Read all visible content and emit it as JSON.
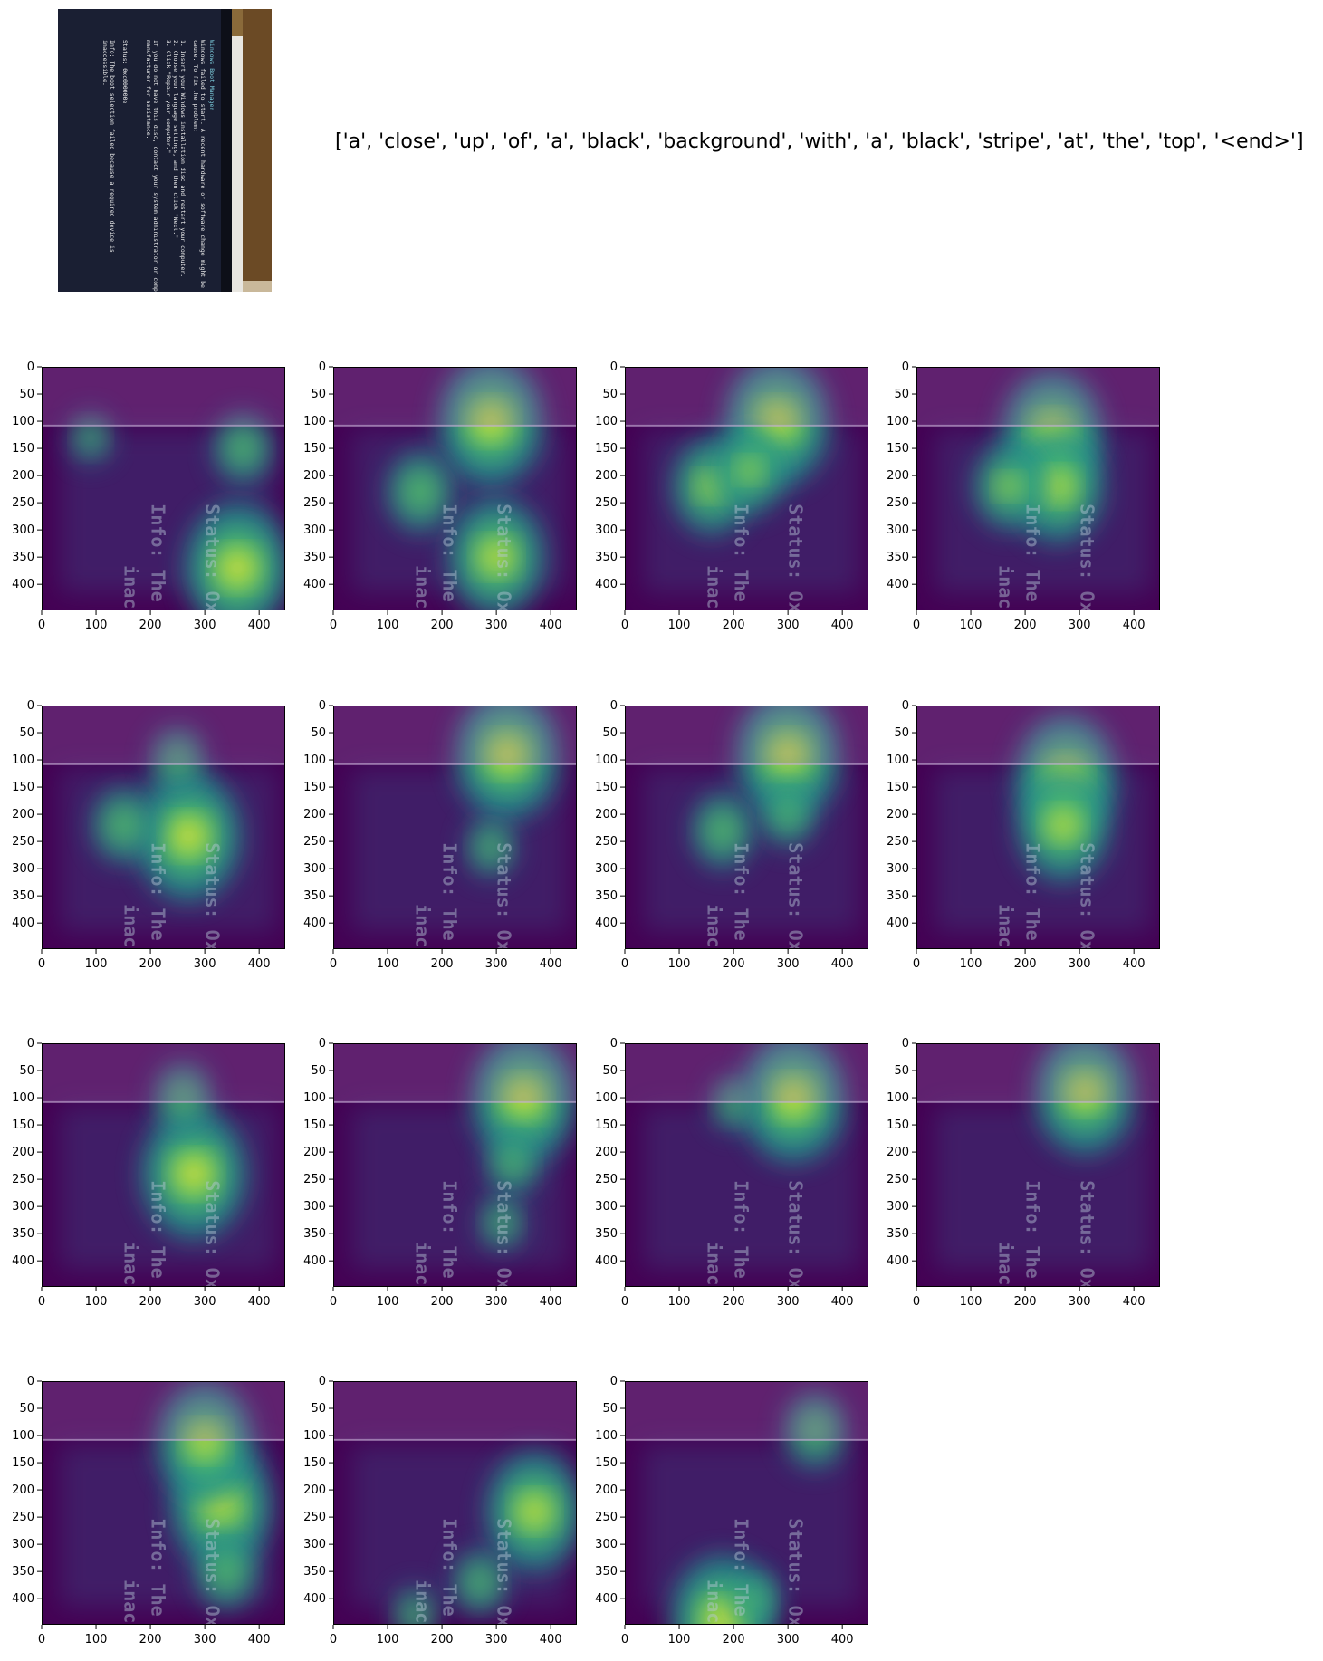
{
  "caption": "['a', 'close', 'up', 'of', 'a', 'black', 'background', 'with', 'a', 'black', 'stripe', 'at', 'the', 'top', '<end>']",
  "source_image": {
    "screen_lines": [
      "Windows Boot Manager",
      "Windows failed to start. A recent hardware or software change might be the",
      "cause. To fix the problem:",
      "1. Insert your Windows installation disc and restart your computer.",
      "2. Choose your language settings, and then click \"Next.\"",
      "3. Click \"Repair your computer.\"",
      "If you do not have this disc, contact your system administrator or computer",
      "manufacturer for assistance.",
      "Status: 0xc000000e",
      "Info: The boot selection failed because a required device is",
      "inaccessible."
    ]
  },
  "overlay_text": {
    "status": "Status: Oxc",
    "info": "Info: The b",
    "inacc": "inacc"
  },
  "colors": {
    "colormap": [
      "#440154",
      "#3b528b",
      "#21918c",
      "#5ec962",
      "#fde725"
    ],
    "screen_dark": "#1a1f33",
    "bezel": "#7a5a30"
  },
  "chart_data": {
    "type": "heatmap",
    "title": "",
    "xlabel": "",
    "ylabel": "",
    "x_ticks": [
      0,
      100,
      200,
      300,
      400
    ],
    "y_ticks": [
      0,
      50,
      100,
      150,
      200,
      250,
      300,
      350,
      400
    ],
    "xlim": [
      0,
      448
    ],
    "ylim": [
      448,
      0
    ],
    "panels": [
      {
        "word": "a",
        "spots": [
          [
            360,
            370,
            1.0
          ],
          [
            370,
            150,
            0.45
          ],
          [
            90,
            130,
            0.25
          ]
        ]
      },
      {
        "word": "close",
        "spots": [
          [
            290,
            100,
            1.0
          ],
          [
            300,
            350,
            0.9
          ],
          [
            160,
            230,
            0.55
          ]
        ]
      },
      {
        "word": "up",
        "spots": [
          [
            280,
            100,
            1.0
          ],
          [
            160,
            220,
            0.7
          ],
          [
            230,
            190,
            0.6
          ]
        ]
      },
      {
        "word": "of",
        "spots": [
          [
            250,
            120,
            0.95
          ],
          [
            260,
            220,
            0.85
          ],
          [
            170,
            220,
            0.6
          ]
        ]
      },
      {
        "word": "a",
        "spots": [
          [
            270,
            240,
            1.0
          ],
          [
            150,
            220,
            0.5
          ],
          [
            250,
            100,
            0.4
          ]
        ]
      },
      {
        "word": "black",
        "spots": [
          [
            320,
            90,
            1.0
          ],
          [
            290,
            260,
            0.35
          ]
        ]
      },
      {
        "word": "background",
        "spots": [
          [
            300,
            90,
            1.0
          ],
          [
            180,
            230,
            0.5
          ],
          [
            300,
            200,
            0.4
          ]
        ]
      },
      {
        "word": "with",
        "spots": [
          [
            275,
            130,
            0.95
          ],
          [
            270,
            220,
            0.85
          ]
        ]
      },
      {
        "word": "a",
        "spots": [
          [
            280,
            240,
            1.0
          ],
          [
            260,
            100,
            0.45
          ]
        ]
      },
      {
        "word": "black",
        "spots": [
          [
            350,
            100,
            1.0
          ],
          [
            330,
            220,
            0.4
          ],
          [
            310,
            330,
            0.3
          ]
        ]
      },
      {
        "word": "stripe",
        "spots": [
          [
            310,
            100,
            1.0
          ],
          [
            200,
            110,
            0.3
          ]
        ]
      },
      {
        "word": "at",
        "spots": [
          [
            310,
            90,
            0.95
          ]
        ]
      },
      {
        "word": "the",
        "spots": [
          [
            330,
            230,
            0.95
          ],
          [
            300,
            110,
            0.9
          ],
          [
            340,
            350,
            0.5
          ]
        ]
      },
      {
        "word": "top",
        "spots": [
          [
            370,
            240,
            0.9
          ],
          [
            270,
            370,
            0.4
          ],
          [
            150,
            430,
            0.3
          ]
        ]
      },
      {
        "word": "<end>",
        "spots": [
          [
            180,
            440,
            1.0
          ],
          [
            350,
            90,
            0.5
          ],
          [
            240,
            400,
            0.3
          ]
        ]
      }
    ]
  }
}
